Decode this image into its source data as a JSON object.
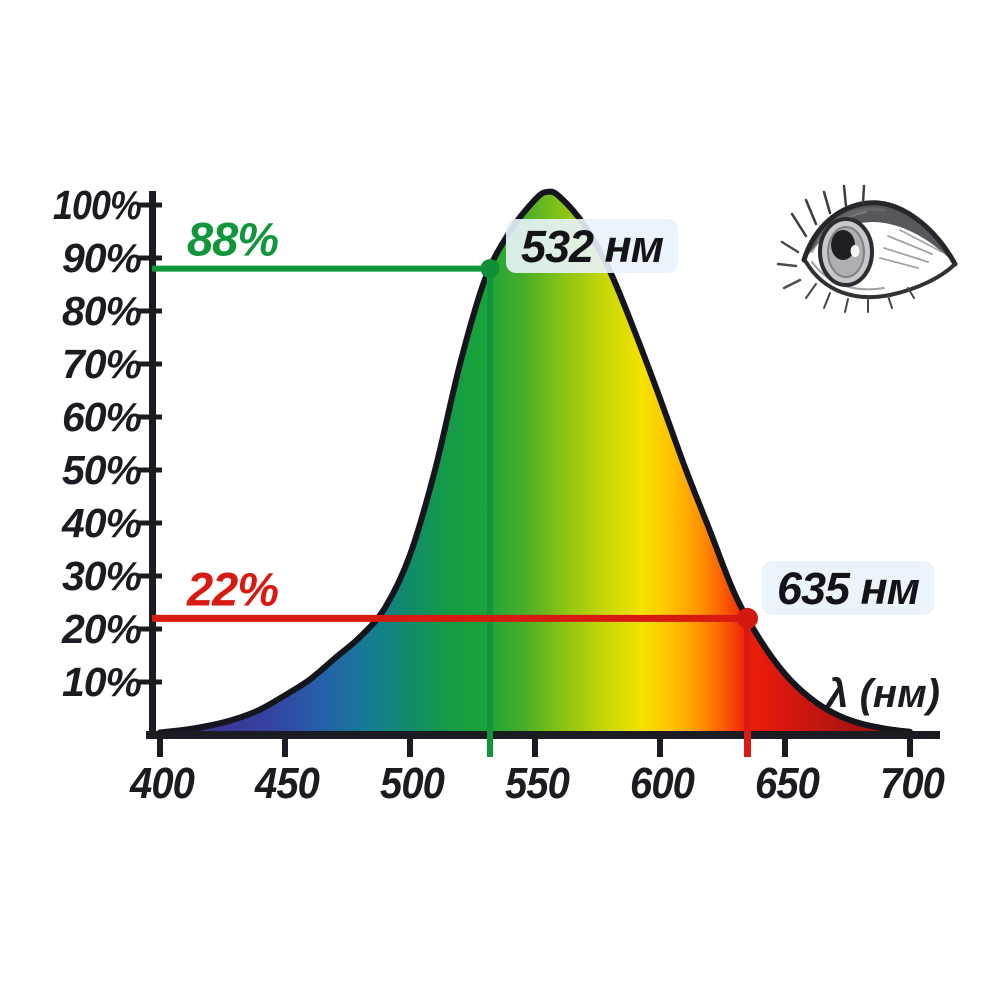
{
  "page": {
    "background": "#ffffff"
  },
  "icons": {
    "eye_illustration": "human-eye-pencil-sketch"
  },
  "chart_data": {
    "type": "area",
    "xlabel": "λ (нм)",
    "x_ticks": [
      "400",
      "450",
      "500",
      "550",
      "600",
      "650",
      "700"
    ],
    "y_ticks": [
      "10%",
      "20%",
      "30%",
      "40%",
      "50%",
      "60%",
      "70%",
      "80%",
      "90%",
      "100%"
    ],
    "x_range_nm": [
      400,
      700
    ],
    "y_range_percent": [
      0,
      100
    ],
    "grid": false,
    "legend": false,
    "axis_color": "#1b1b22",
    "curve_stroke_color": "#15151d",
    "callout_bg": "#e9f3fb",
    "curve": {
      "wavelengths_nm": [
        400,
        410,
        420,
        430,
        440,
        450,
        460,
        470,
        480,
        490,
        500,
        510,
        520,
        530,
        540,
        550,
        555,
        560,
        570,
        580,
        590,
        600,
        610,
        620,
        630,
        640,
        650,
        660,
        670,
        680,
        690,
        700
      ],
      "sensitivity_percent": [
        0.5,
        1.0,
        1.8,
        3.0,
        4.8,
        7.5,
        10.5,
        14.5,
        18.5,
        24,
        34,
        50,
        70,
        86,
        95,
        101,
        102.5,
        101.5,
        96,
        87.5,
        76,
        63.5,
        50.5,
        38.5,
        26.5,
        18,
        11.5,
        7,
        4,
        2.2,
        1.2,
        0.6
      ]
    },
    "markers": [
      {
        "wavelength_nm": 532,
        "sensitivity_percent": 88,
        "value_label": "88%",
        "label": "532 нм",
        "color": "#12963c",
        "dot_color": "#0f8f37"
      },
      {
        "wavelength_nm": 635,
        "sensitivity_percent": 22,
        "value_label": "22%",
        "label": "635 нм",
        "color": "#d81b12",
        "dot_color": "#d31910"
      }
    ],
    "spectrum_gradient": [
      {
        "nm": 400,
        "color": "#3a2a74"
      },
      {
        "nm": 420,
        "color": "#3c3392"
      },
      {
        "nm": 445,
        "color": "#3344a2"
      },
      {
        "nm": 465,
        "color": "#2560aa"
      },
      {
        "nm": 485,
        "color": "#147e92"
      },
      {
        "nm": 500,
        "color": "#108c6a"
      },
      {
        "nm": 515,
        "color": "#159b47"
      },
      {
        "nm": 530,
        "color": "#1ba33a"
      },
      {
        "nm": 545,
        "color": "#46ad2a"
      },
      {
        "nm": 562,
        "color": "#8cc414"
      },
      {
        "nm": 578,
        "color": "#c6d708"
      },
      {
        "nm": 593,
        "color": "#f6e200"
      },
      {
        "nm": 605,
        "color": "#ffc100"
      },
      {
        "nm": 615,
        "color": "#ff9700"
      },
      {
        "nm": 625,
        "color": "#fb5f00"
      },
      {
        "nm": 635,
        "color": "#ee1e09"
      },
      {
        "nm": 650,
        "color": "#da170f"
      },
      {
        "nm": 668,
        "color": "#b81511"
      },
      {
        "nm": 685,
        "color": "#9c1310"
      },
      {
        "nm": 700,
        "color": "#8a120d"
      }
    ]
  }
}
